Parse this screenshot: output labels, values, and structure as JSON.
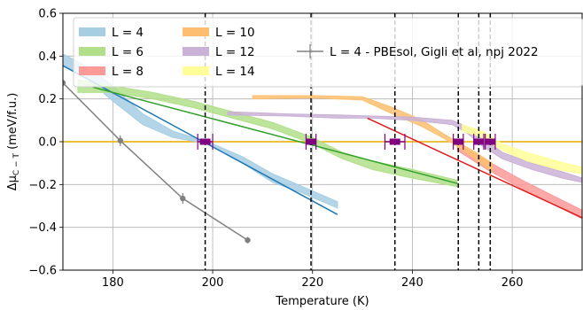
{
  "chart_data": {
    "type": "line",
    "xlabel": "Temperature (K)",
    "ylabel": "Δμ_{C−T} (meV/f.u.)",
    "xlim": [
      170,
      274
    ],
    "ylim": [
      -0.6,
      0.6
    ],
    "x_ticks": [
      "180",
      "200",
      "220",
      "240",
      "260"
    ],
    "x_tick_values": [
      180,
      200,
      220,
      240,
      260
    ],
    "y_ticks": [
      "−0.6",
      "−0.4",
      "−0.2",
      "0.0",
      "0.2",
      "0.4",
      "0.6"
    ],
    "y_tick_values": [
      -0.6,
      -0.4,
      -0.2,
      0.0,
      0.2,
      0.4,
      0.6
    ],
    "grid": true,
    "legend_position": "top",
    "zero_line_color": "#e6ac00",
    "series": [
      {
        "name": "L = 4",
        "band_color": "#a6cee3",
        "fit_color": "#1f78b4",
        "band": [
          [
            170,
            0.36,
            0.41
          ],
          [
            175,
            0.29,
            0.35
          ],
          [
            180,
            0.19,
            0.26
          ],
          [
            186,
            0.08,
            0.13
          ],
          [
            192,
            0.02,
            0.05
          ],
          [
            199,
            -0.01,
            0.0
          ],
          [
            206,
            -0.1,
            -0.07
          ],
          [
            212,
            -0.19,
            -0.15
          ],
          [
            218,
            -0.24,
            -0.21
          ],
          [
            225,
            -0.31,
            -0.28
          ]
        ],
        "fit": [
          [
            170,
            0.355
          ],
          [
            225,
            -0.34
          ]
        ],
        "crossing": 198.5,
        "crossing_error": 1.5
      },
      {
        "name": "L = 6",
        "band_color": "#b2df8a",
        "fit_color": "#33a02c",
        "band": [
          [
            173,
            0.23,
            0.29
          ],
          [
            180,
            0.23,
            0.26
          ],
          [
            188,
            0.2,
            0.23
          ],
          [
            196,
            0.16,
            0.19
          ],
          [
            204,
            0.11,
            0.14
          ],
          [
            212,
            0.06,
            0.09
          ],
          [
            220,
            -0.01,
            0.02
          ],
          [
            226,
            -0.08,
            -0.05
          ],
          [
            232,
            -0.13,
            -0.09
          ],
          [
            240,
            -0.17,
            -0.13
          ],
          [
            249,
            -0.21,
            -0.18
          ]
        ],
        "fit": [
          [
            176,
            0.255
          ],
          [
            249,
            -0.195
          ]
        ],
        "crossing": 219.7,
        "crossing_error": 1.0
      },
      {
        "name": "L = 8",
        "band_color": "#fb9a99",
        "fit_color": "#e31a1c",
        "band": [
          [
            249,
            -0.04,
            -0.01
          ],
          [
            255,
            -0.13,
            -0.09
          ],
          [
            262,
            -0.22,
            -0.18
          ],
          [
            268,
            -0.29,
            -0.25
          ],
          [
            274,
            -0.36,
            -0.32
          ]
        ],
        "fit": [
          [
            231,
            0.11
          ],
          [
            274,
            -0.355
          ]
        ],
        "crossing": 236.5,
        "crossing_error": 2.0
      },
      {
        "name": "L = 10",
        "band_color": "#fdbf6f",
        "fit_color": "#ff7f00",
        "band": [
          [
            208,
            0.2,
            0.215
          ],
          [
            220,
            0.205,
            0.215
          ],
          [
            230,
            0.195,
            0.21
          ],
          [
            236,
            0.13,
            0.16
          ],
          [
            242,
            0.07,
            0.1
          ],
          [
            246,
            0.02,
            0.04
          ],
          [
            249,
            -0.02,
            0.0
          ],
          [
            252,
            -0.07,
            -0.04
          ],
          [
            256,
            -0.14,
            -0.1
          ]
        ],
        "fit": [],
        "crossing": 249.2,
        "crossing_error": 1.0
      },
      {
        "name": "L = 12",
        "band_color": "#cab2d6",
        "fit_color": "#6a3d9a",
        "band": [
          [
            203,
            0.125,
            0.14
          ],
          [
            215,
            0.12,
            0.13
          ],
          [
            225,
            0.11,
            0.125
          ],
          [
            232,
            0.11,
            0.12
          ],
          [
            240,
            0.1,
            0.115
          ],
          [
            248,
            0.08,
            0.1
          ],
          [
            251,
            0.04,
            0.07
          ],
          [
            254,
            -0.02,
            0.02
          ],
          [
            258,
            -0.08,
            -0.05
          ],
          [
            264,
            -0.13,
            -0.1
          ],
          [
            270,
            -0.17,
            -0.14
          ],
          [
            274,
            -0.19,
            -0.17
          ]
        ],
        "fit": [],
        "crossing": 253.3,
        "crossing_error": 1.0
      },
      {
        "name": "L = 14",
        "band_color": "#ffff99",
        "fit_color": "#b15928",
        "band": [
          [
            250,
            0.05,
            0.08
          ],
          [
            254,
            0.02,
            0.05
          ],
          [
            258,
            -0.04,
            -0.01
          ],
          [
            263,
            -0.09,
            -0.05
          ],
          [
            269,
            -0.13,
            -0.09
          ],
          [
            274,
            -0.15,
            -0.12
          ]
        ],
        "fit": [],
        "crossing": 255.6,
        "crossing_error": 1.0
      }
    ],
    "reference": {
      "name": "L = 4 - PBEsol, Gigli et al, npj 2022",
      "color": "#808080",
      "points": [
        [
          170,
          0.275,
          0.015
        ],
        [
          181.5,
          0.005,
          0.025
        ],
        [
          194,
          -0.265,
          0.025
        ],
        [
          207,
          -0.46,
          0.015
        ]
      ]
    },
    "crossing_marker_color": "#800080"
  }
}
